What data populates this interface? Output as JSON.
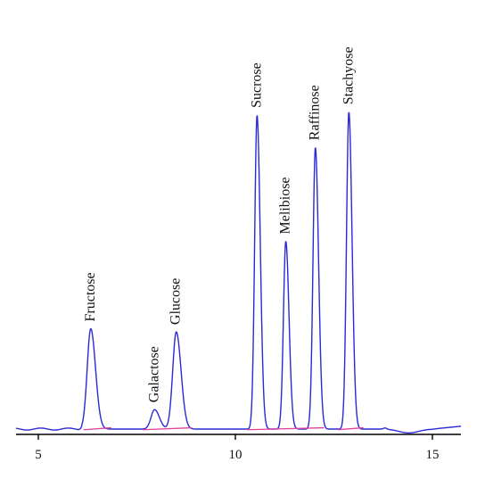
{
  "chart_data": {
    "type": "line",
    "title": "",
    "xlabel": "",
    "ylabel": "",
    "xlim": [
      4.3,
      15.8
    ],
    "ylim": [
      -0.02,
      1.0
    ],
    "x_ticks": [
      5,
      10,
      15
    ],
    "x_tick_labels": [
      "5",
      "10",
      "15"
    ],
    "y_axis_visible": false,
    "grid": false,
    "series": [
      {
        "role": "chromatogram",
        "color": "#2a2ad6",
        "peaks": [
          {
            "name": "Fructose",
            "x": 6.33,
            "height": 0.31,
            "width": 0.09
          },
          {
            "name": "Galactose",
            "x": 7.95,
            "height": 0.06,
            "width": 0.09
          },
          {
            "name": "Glucose",
            "x": 8.5,
            "height": 0.3,
            "width": 0.09
          },
          {
            "name": "Sucrose",
            "x": 10.55,
            "height": 0.97,
            "width": 0.06
          },
          {
            "name": "Melibiose",
            "x": 11.28,
            "height": 0.58,
            "width": 0.06
          },
          {
            "name": "Raffinose",
            "x": 12.03,
            "height": 0.87,
            "width": 0.06
          },
          {
            "name": "Stachyose",
            "x": 12.88,
            "height": 0.98,
            "width": 0.06
          }
        ]
      },
      {
        "role": "baseline",
        "color": "#e0409a"
      }
    ],
    "annotations": [
      "Fructose",
      "Galactose",
      "Glucose",
      "Sucrose",
      "Melibiose",
      "Raffinose",
      "Stachyose"
    ]
  }
}
